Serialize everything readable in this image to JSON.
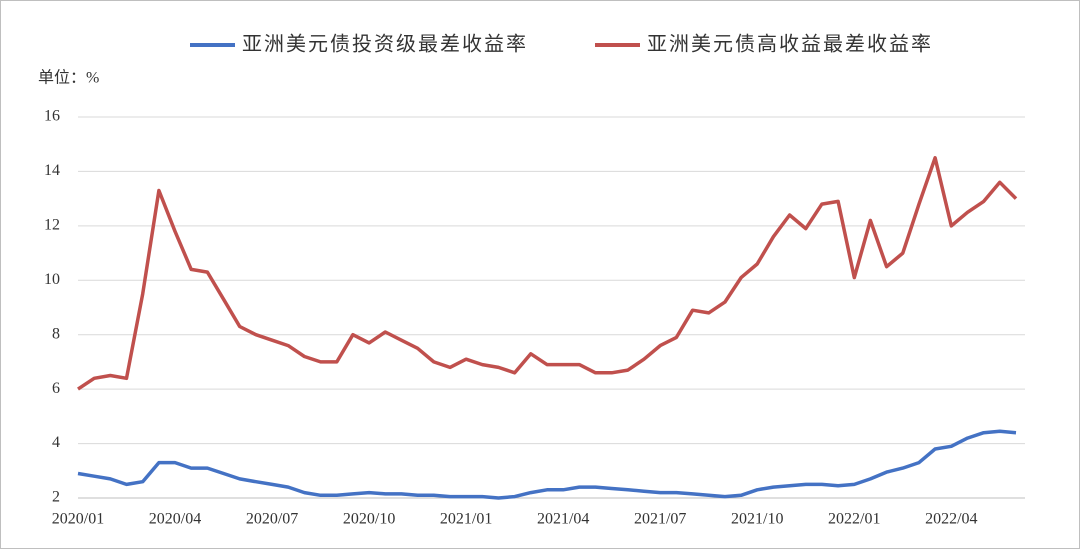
{
  "chart_data": {
    "type": "line",
    "y_axis_label": "单位：%",
    "categories": [
      "2020/01",
      null,
      null,
      null,
      null,
      null,
      "2020/04",
      null,
      null,
      null,
      null,
      null,
      "2020/07",
      null,
      null,
      null,
      null,
      null,
      "2020/10",
      null,
      null,
      null,
      null,
      null,
      "2021/01",
      null,
      null,
      null,
      null,
      null,
      "2021/04",
      null,
      null,
      null,
      null,
      null,
      "2021/07",
      null,
      null,
      null,
      null,
      null,
      "2021/10",
      null,
      null,
      null,
      null,
      null,
      "2022/01",
      null,
      null,
      null,
      null,
      null,
      "2022/04",
      null,
      null,
      null,
      null
    ],
    "series": [
      {
        "name": "亚洲美元债投资级最差收益率",
        "color": "#4472c4",
        "values": [
          2.9,
          2.8,
          2.7,
          2.5,
          2.6,
          3.3,
          3.3,
          3.1,
          3.1,
          2.9,
          2.7,
          2.6,
          2.5,
          2.4,
          2.2,
          2.1,
          2.1,
          2.15,
          2.2,
          2.15,
          2.15,
          2.1,
          2.1,
          2.05,
          2.05,
          2.05,
          2.0,
          2.05,
          2.2,
          2.3,
          2.3,
          2.4,
          2.4,
          2.35,
          2.3,
          2.25,
          2.2,
          2.2,
          2.15,
          2.1,
          2.05,
          2.1,
          2.3,
          2.4,
          2.45,
          2.5,
          2.5,
          2.45,
          2.5,
          2.7,
          2.95,
          3.1,
          3.3,
          3.8,
          3.9,
          4.2,
          4.4,
          4.45,
          4.4
        ]
      },
      {
        "name": "亚洲美元债高收益最差收益率",
        "color": "#c0504d",
        "values": [
          6.0,
          6.4,
          6.5,
          6.4,
          9.5,
          13.3,
          11.8,
          10.4,
          10.3,
          9.3,
          8.3,
          8.0,
          7.8,
          7.6,
          7.2,
          7.0,
          7.0,
          8.0,
          7.7,
          8.1,
          7.8,
          7.5,
          7.0,
          6.8,
          7.1,
          6.9,
          6.8,
          6.6,
          7.3,
          6.9,
          6.9,
          6.9,
          6.6,
          6.6,
          6.7,
          7.1,
          7.6,
          7.9,
          8.9,
          8.8,
          9.2,
          10.1,
          10.6,
          11.6,
          12.4,
          11.9,
          12.8,
          12.9,
          10.1,
          12.2,
          10.5,
          11.0,
          12.8,
          14.5,
          12.0,
          12.5,
          12.9,
          13.6,
          13.0
        ]
      }
    ],
    "ylim": [
      2,
      16
    ],
    "yticks": [
      2,
      4,
      6,
      8,
      10,
      12,
      14,
      16
    ],
    "grid": true
  }
}
